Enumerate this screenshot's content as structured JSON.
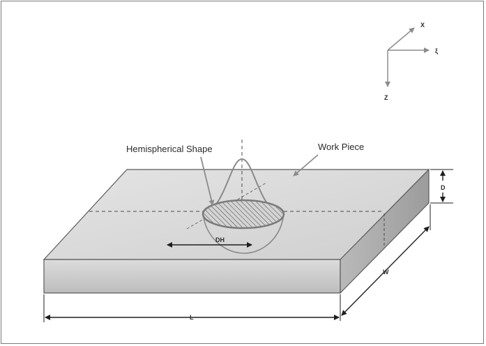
{
  "diagram": {
    "axes": {
      "x_label": "X",
      "xi_label": "ξ",
      "z_label": "Z"
    },
    "callouts": {
      "hemisphere": "Hemispherical Shape",
      "workpiece": "Work Piece"
    },
    "dimensions": {
      "depth": "D",
      "width": "W",
      "length": "L",
      "hemisphere_diameter": "DH"
    },
    "colors": {
      "top_face": "#d9d9d9",
      "front_face": "#c8c8c8",
      "side_face": "#a9a9a9",
      "outline": "#5a5a5a",
      "arrow": "#1e1e1e",
      "callout_arrow": "#8c8c8c"
    }
  }
}
